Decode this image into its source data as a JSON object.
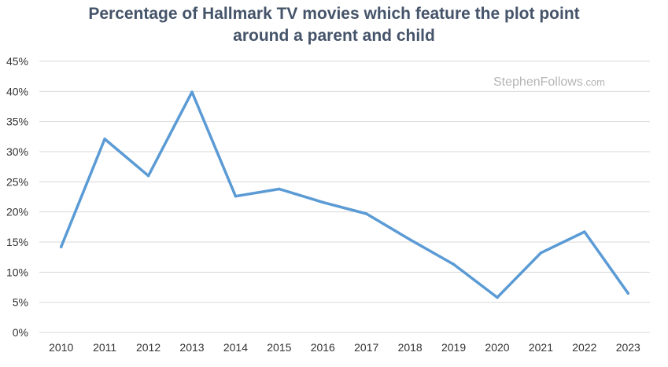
{
  "title_lines": [
    "Percentage of Hallmark TV movies which feature the plot point",
    "around a parent and child"
  ],
  "watermark": {
    "main": "StephenFollows",
    "suffix": ".com"
  },
  "colors": {
    "line": "#5b9bd5",
    "grid": "#d9d9d9",
    "title": "#45546a"
  },
  "chart_data": {
    "type": "line",
    "title": "Percentage of Hallmark TV movies which feature the plot point around a parent and child",
    "xlabel": "",
    "ylabel": "",
    "grid": true,
    "legend": "none",
    "ylim": [
      0,
      45
    ],
    "yticks": [
      0,
      5,
      10,
      15,
      20,
      25,
      30,
      35,
      40,
      45
    ],
    "ytick_labels": [
      "0%",
      "5%",
      "10%",
      "15%",
      "20%",
      "25%",
      "30%",
      "35%",
      "40%",
      "45%"
    ],
    "categories": [
      "2010",
      "2011",
      "2012",
      "2013",
      "2014",
      "2015",
      "2016",
      "2017",
      "2018",
      "2019",
      "2020",
      "2021",
      "2022",
      "2023"
    ],
    "series": [
      {
        "values": [
          14.2,
          32.1,
          26.0,
          39.9,
          22.6,
          23.8,
          21.6,
          19.7,
          15.4,
          11.3,
          5.8,
          13.2,
          16.7,
          6.5
        ]
      }
    ]
  }
}
